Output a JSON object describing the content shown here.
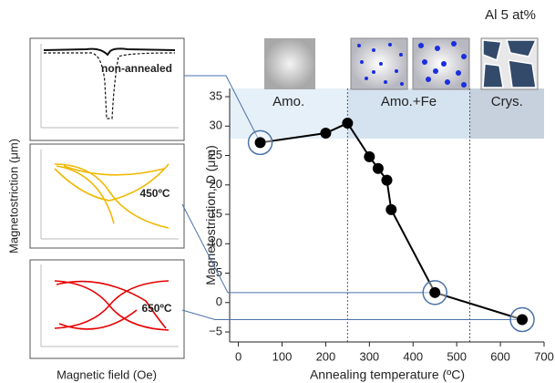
{
  "chart_data": {
    "type": "line",
    "unit_label": "Al 5 at%",
    "xlabel": "Annealing temperature (ºC)",
    "ylabel": [
      "Magnetostriction, ",
      "D",
      " (μm)"
    ],
    "x": [
      50,
      200,
      250,
      300,
      320,
      340,
      350,
      450,
      650
    ],
    "series": [
      {
        "color": "#000000",
        "values": [
          27.2,
          28.8,
          30.5,
          24.8,
          22.8,
          20.8,
          15.8,
          1.7,
          -2.9
        ]
      }
    ],
    "xlim": [
      -20,
      700
    ],
    "ylim": [
      -6.7,
      36.4
    ],
    "xticks": [
      0,
      100,
      200,
      300,
      400,
      500,
      600,
      700
    ],
    "yticks": [
      {
        "value": -5,
        "label": "−5"
      },
      0,
      5,
      10,
      15,
      20,
      25,
      30,
      35
    ],
    "regions": [
      {
        "label": "Amo.",
        "range": [
          -20,
          250
        ],
        "color": "#e6f0f8"
      },
      {
        "label": "Amo.+Fe",
        "range": [
          250,
          530
        ],
        "color": "#d5e3f0"
      },
      {
        "label": "Crys.",
        "range": [
          530,
          700
        ],
        "color": "#c7d1dd"
      }
    ],
    "insets": {
      "ylabel": "Magnetostriction (μm)",
      "xlabel": "Magnetic field (Oe)",
      "labels": [
        "non-annealed",
        "450ºC",
        "650ºC"
      ]
    }
  }
}
